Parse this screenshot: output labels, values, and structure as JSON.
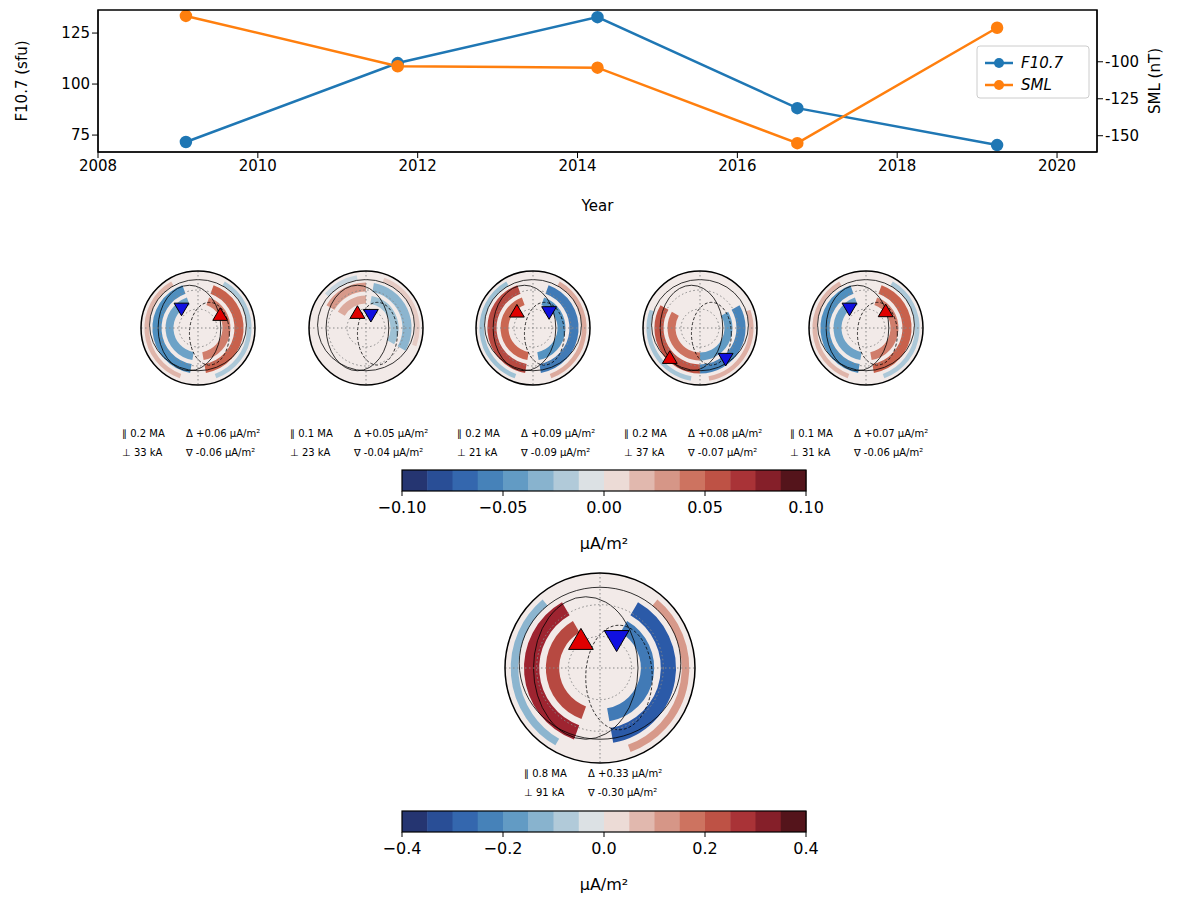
{
  "chart_data": [
    {
      "type": "line",
      "xlabel": "Year",
      "ylabel": "F10.7 (sfu)",
      "y2label": "SML (nT)",
      "x": [
        2009.1,
        2011.75,
        2014.25,
        2016.75,
        2019.25
      ],
      "series": [
        {
          "name": "F10.7",
          "color": "#1f77b4",
          "marker": "o",
          "values": [
            71.6,
            110.3,
            132.8,
            88.2,
            70.1
          ]
        },
        {
          "name": "SML",
          "color": "#ff7f0e",
          "marker": "o",
          "axis": "y2",
          "values": [
            -69,
            -103,
            -104,
            -155,
            -77
          ]
        }
      ],
      "xlim": [
        2008,
        2020.5
      ],
      "xticks": [
        2008,
        2010,
        2012,
        2014,
        2016,
        2018,
        2020
      ],
      "ylim": [
        66.7,
        136.3
      ],
      "yticks": [
        75,
        100,
        125
      ],
      "y2lim": [
        -161,
        -65
      ],
      "y2ticks": [
        -150,
        -125,
        -100
      ],
      "legend": "upper right",
      "grid": false
    },
    {
      "type": "polar_map",
      "panels": [
        {
          "parallel": "∥ 0.2 MA",
          "perpendicular": "⊥ 33 kA",
          "max": "Δ +0.06 μA/m²",
          "min": "∇ -0.06 μA/m²"
        },
        {
          "parallel": "∥ 0.1 MA",
          "perpendicular": "⊥ 23 kA",
          "max": "Δ +0.05 μA/m²",
          "min": "∇ -0.04 μA/m²"
        },
        {
          "parallel": "∥ 0.2 MA",
          "perpendicular": "⊥ 21 kA",
          "max": "Δ +0.09 μA/m²",
          "min": "∇ -0.09 μA/m²"
        },
        {
          "parallel": "∥ 0.2 MA",
          "perpendicular": "⊥ 37 kA",
          "max": "Δ +0.08 μA/m²",
          "min": "∇ -0.07 μA/m²"
        },
        {
          "parallel": "∥ 0.1 MA",
          "perpendicular": "⊥ 31 kA",
          "max": "Δ +0.07 μA/m²",
          "min": "∇ -0.06 μA/m²"
        }
      ],
      "colorbar": {
        "range": [
          -0.1,
          0.1
        ],
        "label": "μA/m²",
        "ticks": [
          {
            "value": -0.1,
            "label": "−0.10"
          },
          {
            "value": -0.05,
            "label": "−0.05"
          },
          {
            "value": 0,
            "label": "0.00"
          },
          {
            "value": 0.05,
            "label": "0.05"
          },
          {
            "value": 0.1,
            "label": "0.10"
          }
        ]
      }
    },
    {
      "type": "polar_map",
      "panels": [
        {
          "parallel": "∥ 0.8 MA",
          "perpendicular": "⊥ 91 kA",
          "max": "Δ +0.33 μA/m²",
          "min": "∇ -0.30 μA/m²"
        }
      ],
      "colorbar": {
        "range": [
          -0.4,
          0.4
        ],
        "label": "μA/m²",
        "ticks": [
          {
            "value": -0.4,
            "label": "−0.4"
          },
          {
            "value": -0.2,
            "label": "−0.2"
          },
          {
            "value": 0,
            "label": "0.0"
          },
          {
            "value": 0.2,
            "label": "0.2"
          },
          {
            "value": 0.4,
            "label": "0.4"
          }
        ]
      }
    }
  ]
}
